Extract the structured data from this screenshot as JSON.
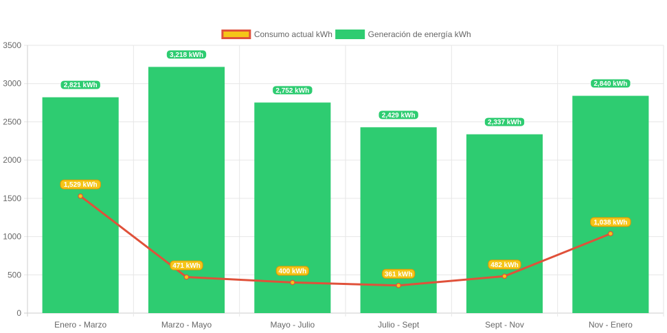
{
  "chart_data": {
    "type": "bar",
    "categories": [
      "Enero - Marzo",
      "Marzo - Mayo",
      "Mayo - Julio",
      "Julio - Sept",
      "Sept - Nov",
      "Nov - Enero"
    ],
    "series": [
      {
        "name": "Consumo actual kWh",
        "type": "line",
        "values": [
          1529,
          471,
          400,
          361,
          482,
          1038
        ],
        "labels": [
          "1,529 kWh",
          "471 kWh",
          "400 kWh",
          "361 kWh",
          "482 kWh",
          "1,038 kWh"
        ],
        "color": "#e0513a",
        "fill_color": "#f5c518"
      },
      {
        "name": "Generación de energía kWh",
        "type": "bar",
        "values": [
          2821,
          3218,
          2752,
          2429,
          2337,
          2840
        ],
        "labels": [
          "2,821 kWh",
          "3,218 kWh",
          "2,752 kWh",
          "2,429 kWh",
          "2,337 kWh",
          "2,840 kWh"
        ],
        "color": "#2ecc71"
      }
    ],
    "ylim": [
      0,
      3500
    ],
    "yticks": [
      0,
      500,
      1000,
      1500,
      2000,
      2500,
      3000,
      3500
    ],
    "ytick_labels": [
      "0",
      "500",
      "1000",
      "1500",
      "2000",
      "2500",
      "3000",
      "3500"
    ],
    "grid": true,
    "legend_position": "top"
  }
}
